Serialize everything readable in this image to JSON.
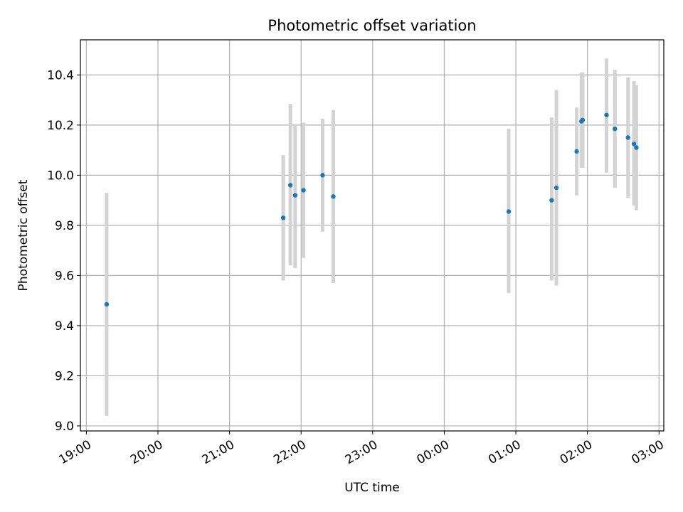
{
  "chart_data": {
    "type": "scatter",
    "title": "Photometric offset variation",
    "xlabel": "UTC time",
    "ylabel": "Photometric offset",
    "grid": true,
    "xlim": [
      "18:55",
      "03:04"
    ],
    "ylim": [
      8.98,
      10.54
    ],
    "x_ticks": [
      "19:00",
      "20:00",
      "21:00",
      "22:00",
      "23:00",
      "00:00",
      "01:00",
      "02:00",
      "03:00"
    ],
    "y_ticks": [
      "9.0",
      "9.2",
      "9.4",
      "9.6",
      "9.8",
      "10.0",
      "10.2",
      "10.4"
    ],
    "series": [
      {
        "x": [
          "19:17",
          "21:45",
          "21:51",
          "21:55",
          "22:02",
          "22:18",
          "22:27",
          "00:54",
          "01:30",
          "01:34",
          "01:51",
          "01:55",
          "01:56",
          "02:16",
          "02:23",
          "02:34",
          "02:39",
          "02:41"
        ],
        "y": [
          9.485,
          9.83,
          9.96,
          9.92,
          9.94,
          10.0,
          9.915,
          9.855,
          9.9,
          9.95,
          10.095,
          10.215,
          10.22,
          10.24,
          10.185,
          10.15,
          10.125,
          10.11
        ],
        "yerr_low": [
          9.04,
          9.58,
          9.64,
          9.63,
          9.67,
          9.775,
          9.57,
          9.53,
          9.58,
          9.56,
          9.92,
          10.03,
          10.03,
          10.01,
          9.95,
          9.91,
          9.88,
          9.86
        ],
        "yerr_high": [
          9.93,
          10.08,
          10.285,
          10.2,
          10.21,
          10.225,
          10.26,
          10.185,
          10.23,
          10.34,
          10.27,
          10.41,
          10.41,
          10.465,
          10.42,
          10.39,
          10.375,
          10.36
        ]
      }
    ],
    "colors": {
      "point": "#1f77b4",
      "errorbar": "#d3d3d3",
      "grid": "#b0b0b0",
      "axes": "#000000"
    }
  }
}
